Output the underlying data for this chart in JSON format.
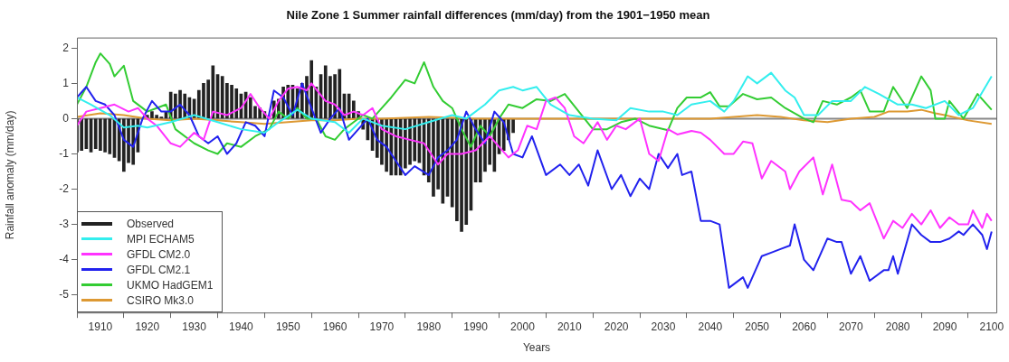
{
  "chart_data": {
    "type": "line",
    "title": "Nile Zone 1 Summer rainfall differences (mm/day) from the 1901−1950 mean",
    "xlabel": "Years",
    "ylabel": "Rainfall anomaly (mm/day)",
    "xlim": [
      1905,
      2101
    ],
    "xticks": [
      1910,
      1920,
      1930,
      1940,
      1950,
      1960,
      1970,
      1980,
      1990,
      2000,
      2010,
      2020,
      2030,
      2040,
      2050,
      2060,
      2070,
      2080,
      2090,
      2100
    ],
    "ylim": [
      -5.5,
      2.3
    ],
    "yticks": [
      -5,
      -4,
      -3,
      -2,
      -1,
      0,
      1,
      2
    ],
    "grid": false,
    "legend": "bottom left",
    "ref_lines": [
      {
        "axis": "y",
        "value": 0,
        "color": "#888888"
      }
    ],
    "series": [
      {
        "name": "Observed",
        "type": "bar",
        "color": "#222222",
        "x": [
          1905,
          1906,
          1907,
          1908,
          1909,
          1910,
          1911,
          1912,
          1913,
          1914,
          1915,
          1916,
          1917,
          1918,
          1919,
          1920,
          1921,
          1922,
          1923,
          1924,
          1925,
          1926,
          1927,
          1928,
          1929,
          1930,
          1931,
          1932,
          1933,
          1934,
          1935,
          1936,
          1937,
          1938,
          1939,
          1940,
          1941,
          1942,
          1943,
          1944,
          1945,
          1946,
          1947,
          1948,
          1949,
          1950,
          1951,
          1952,
          1953,
          1954,
          1955,
          1956,
          1957,
          1958,
          1959,
          1960,
          1961,
          1962,
          1963,
          1964,
          1965,
          1966,
          1967,
          1968,
          1969,
          1970,
          1971,
          1972,
          1973,
          1974,
          1975,
          1976,
          1977,
          1978,
          1979,
          1980,
          1981,
          1982,
          1983,
          1984,
          1985,
          1986,
          1987,
          1988,
          1989,
          1990,
          1991,
          1992,
          1993,
          1994,
          1995,
          1996,
          1997,
          1998
        ],
        "values": [
          -0.95,
          -0.9,
          -0.85,
          -0.95,
          -0.85,
          -0.9,
          -0.95,
          -1.0,
          -1.1,
          -1.2,
          -1.5,
          -1.25,
          -1.3,
          -0.95,
          null,
          0.1,
          0.2,
          0.1,
          0.05,
          0.2,
          0.75,
          0.7,
          0.8,
          0.7,
          0.6,
          0.55,
          0.8,
          1.0,
          1.1,
          1.5,
          1.25,
          1.2,
          1.0,
          0.95,
          0.85,
          0.7,
          0.75,
          0.6,
          0.35,
          0.3,
          0.2,
          null,
          0.5,
          0.55,
          0.9,
          0.95,
          0.95,
          0.85,
          1.0,
          1.2,
          1.65,
          0.9,
          1.25,
          1.5,
          1.2,
          1.25,
          1.4,
          0.7,
          0.7,
          0.5,
          0.2,
          -0.3,
          -0.6,
          -0.9,
          -1.1,
          -1.3,
          -1.5,
          -1.6,
          -1.6,
          -1.6,
          -1.4,
          -1.3,
          -1.2,
          -1.25,
          -1.6,
          -1.8,
          -2.2,
          -2.0,
          -2.4,
          -2.2,
          -2.5,
          -2.9,
          -3.2,
          -3.0,
          -2.6,
          -1.8,
          -1.8,
          -1.5,
          -1.3,
          -1.5,
          -1.0,
          -0.9,
          -0.6,
          -0.4
        ]
      },
      {
        "name": "MPI ECHAM5",
        "color": "#33eeee",
        "x": [
          1905,
          1908,
          1912,
          1915,
          1918,
          1920,
          1925,
          1930,
          1935,
          1940,
          1945,
          1948,
          1952,
          1955,
          1960,
          1963,
          1966,
          1970,
          1975,
          1980,
          1985,
          1988,
          1992,
          1995,
          1998,
          2000,
          2003,
          2006,
          2010,
          2015,
          2020,
          2023,
          2027,
          2030,
          2033,
          2036,
          2040,
          2043,
          2045,
          2048,
          2050,
          2053,
          2056,
          2058,
          2060,
          2063,
          2066,
          2070,
          2073,
          2076,
          2080,
          2083,
          2086,
          2090,
          2093,
          2096,
          2100
        ],
        "values": [
          0.6,
          0.4,
          0.1,
          -0.25,
          -0.2,
          -0.25,
          -0.1,
          0.1,
          -0.1,
          -0.3,
          -0.4,
          -0.1,
          0.25,
          0.0,
          -0.1,
          -0.4,
          0.0,
          -0.2,
          -0.3,
          -0.1,
          0.1,
          0.0,
          0.4,
          0.8,
          0.9,
          0.8,
          0.9,
          0.4,
          0.1,
          0.0,
          -0.05,
          0.3,
          0.2,
          0.2,
          0.1,
          0.4,
          0.5,
          0.2,
          0.5,
          1.2,
          1.0,
          1.3,
          0.8,
          0.6,
          0.1,
          0.1,
          0.5,
          0.5,
          0.9,
          0.7,
          0.4,
          0.4,
          0.3,
          0.5,
          0.1,
          0.3,
          1.2
        ]
      },
      {
        "name": "GFDL CM2.0",
        "color": "#ff33ff",
        "x": [
          1905,
          1907,
          1910,
          1913,
          1916,
          1918,
          1920,
          1922,
          1925,
          1927,
          1930,
          1932,
          1934,
          1937,
          1940,
          1942,
          1944,
          1946,
          1948,
          1950,
          1952,
          1954,
          1955,
          1958,
          1960,
          1962,
          1964,
          1966,
          1968,
          1970,
          1973,
          1976,
          1979,
          1982,
          1984,
          1987,
          1990,
          1993,
          1995,
          1997,
          1999,
          2001,
          2003,
          2005,
          2007,
          2009,
          2011,
          2013,
          2016,
          2018,
          2020,
          2022,
          2025,
          2027,
          2029,
          2031,
          2033,
          2036,
          2038,
          2040,
          2043,
          2045,
          2047,
          2049,
          2051,
          2053,
          2056,
          2057,
          2059,
          2062,
          2064,
          2066,
          2068,
          2070,
          2072,
          2074,
          2077,
          2079,
          2081,
          2083,
          2085,
          2087,
          2089,
          2091,
          2093,
          2095,
          2096,
          2098,
          2099,
          2100
        ],
        "values": [
          -0.2,
          0.2,
          0.3,
          0.4,
          0.2,
          0.3,
          0.0,
          -0.2,
          -0.7,
          -0.8,
          -0.4,
          -0.6,
          0.2,
          0.1,
          0.3,
          0.7,
          0.3,
          0.0,
          0.5,
          0.85,
          0.9,
          0.8,
          1.0,
          0.5,
          0.4,
          0.1,
          0.2,
          0.1,
          0.3,
          -0.3,
          -0.5,
          -0.6,
          -0.7,
          -1.3,
          -1.0,
          -1.0,
          -0.9,
          -0.5,
          -0.8,
          -1.1,
          -0.9,
          -0.2,
          -0.3,
          0.5,
          0.6,
          0.3,
          -0.5,
          -0.7,
          -0.1,
          -0.6,
          -0.2,
          -0.3,
          0.0,
          -1.0,
          -1.2,
          -0.3,
          -0.45,
          -0.35,
          -0.4,
          -0.6,
          -1.0,
          -1.0,
          -0.65,
          -0.7,
          -1.7,
          -1.2,
          -1.5,
          -2.0,
          -1.5,
          -1.1,
          -2.15,
          -1.3,
          -2.3,
          -2.35,
          -2.6,
          -2.4,
          -3.4,
          -2.9,
          -3.1,
          -2.7,
          -3.0,
          -2.6,
          -3.1,
          -2.8,
          -3.0,
          -3.0,
          -2.6,
          -3.1,
          -2.7,
          -2.9
        ]
      },
      {
        "name": "GFDL CM2.1",
        "color": "#2222ee",
        "x": [
          1905,
          1907,
          1909,
          1911,
          1913,
          1915,
          1917,
          1919,
          1921,
          1923,
          1925,
          1927,
          1929,
          1931,
          1933,
          1935,
          1937,
          1939,
          1941,
          1943,
          1945,
          1947,
          1949,
          1951,
          1953,
          1955,
          1957,
          1959,
          1961,
          1963,
          1965,
          1967,
          1969,
          1971,
          1973,
          1975,
          1977,
          1980,
          1982,
          1984,
          1986,
          1988,
          1990,
          1992,
          1994,
          1996,
          1998,
          2000,
          2002,
          2005,
          2008,
          2010,
          2012,
          2014,
          2016,
          2019,
          2021,
          2023,
          2025,
          2027,
          2029,
          2031,
          2033,
          2034,
          2036,
          2038,
          2040,
          2042,
          2044,
          2047,
          2048,
          2051,
          2053,
          2055,
          2057,
          2058,
          2060,
          2062,
          2065,
          2067,
          2068,
          2070,
          2072,
          2074,
          2077,
          2078,
          2079,
          2080,
          2083,
          2085,
          2087,
          2089,
          2091,
          2093,
          2094,
          2096,
          2098,
          2099,
          2100
        ],
        "values": [
          0.6,
          0.9,
          0.5,
          0.4,
          0.1,
          -0.6,
          -0.8,
          0.0,
          0.5,
          0.2,
          0.2,
          0.4,
          0.1,
          -0.5,
          -0.7,
          -0.5,
          -1.0,
          -0.7,
          -0.1,
          -0.2,
          -0.5,
          0.8,
          0.6,
          0.1,
          1.0,
          0.3,
          -0.4,
          0.0,
          0.3,
          -0.6,
          -0.3,
          0.0,
          -0.6,
          -0.8,
          -1.2,
          -1.6,
          -1.35,
          -1.6,
          -1.1,
          -0.9,
          -0.6,
          0.2,
          -0.3,
          -0.7,
          0.2,
          -0.1,
          -1.0,
          -1.1,
          -0.5,
          -1.6,
          -1.3,
          -1.6,
          -1.3,
          -1.9,
          -0.9,
          -2.0,
          -1.6,
          -2.2,
          -1.7,
          -2.0,
          -1.0,
          -1.4,
          -1.0,
          -1.6,
          -1.5,
          -2.9,
          -2.9,
          -3.0,
          -4.8,
          -4.5,
          -4.8,
          -3.9,
          -3.8,
          -3.7,
          -3.6,
          -3.0,
          -4.0,
          -4.3,
          -3.4,
          -3.5,
          -3.5,
          -4.4,
          -3.9,
          -4.6,
          -4.3,
          -4.3,
          -3.9,
          -4.4,
          -3.0,
          -3.3,
          -3.5,
          -3.5,
          -3.4,
          -3.2,
          -3.3,
          -3.0,
          -3.3,
          -3.7,
          -3.2
        ]
      },
      {
        "name": "UKMO HadGEM1",
        "color": "#33cc33",
        "x": [
          1905,
          1907,
          1909,
          1910,
          1912,
          1913,
          1915,
          1917,
          1920,
          1922,
          1924,
          1926,
          1930,
          1933,
          1935,
          1937,
          1940,
          1943,
          1946,
          1948,
          1950,
          1952,
          1954,
          1956,
          1958,
          1960,
          1962,
          1964,
          1966,
          1968,
          1970,
          1972,
          1975,
          1977,
          1979,
          1981,
          1983,
          1985,
          1987,
          1989,
          1991,
          1993,
          1995,
          1997,
          2000,
          2003,
          2006,
          2009,
          2012,
          2015,
          2018,
          2021,
          2024,
          2027,
          2031,
          2033,
          2035,
          2038,
          2040,
          2042,
          2044,
          2047,
          2050,
          2053,
          2056,
          2060,
          2062,
          2064,
          2067,
          2070,
          2072,
          2074,
          2077,
          2079,
          2082,
          2085,
          2087,
          2088,
          2090,
          2091,
          2094,
          2097,
          2100
        ],
        "values": [
          0.4,
          0.9,
          1.6,
          1.85,
          1.55,
          1.2,
          1.5,
          0.5,
          0.2,
          0.3,
          0.4,
          -0.3,
          -0.7,
          -0.9,
          -1.0,
          -0.7,
          -0.8,
          -0.5,
          -0.3,
          0.2,
          0.0,
          0.3,
          0.0,
          0.0,
          -0.5,
          -0.6,
          -0.3,
          -0.1,
          0.1,
          0.0,
          0.3,
          0.6,
          1.1,
          1.0,
          1.6,
          0.9,
          0.5,
          0.3,
          -0.3,
          -0.8,
          -0.2,
          -0.5,
          0.0,
          0.4,
          0.3,
          0.55,
          0.5,
          0.7,
          0.2,
          -0.3,
          -0.3,
          -0.1,
          0.0,
          -0.2,
          -0.33,
          0.3,
          0.6,
          0.6,
          0.75,
          0.35,
          0.35,
          0.7,
          0.55,
          0.6,
          0.3,
          0.0,
          -0.1,
          0.5,
          0.4,
          0.6,
          0.8,
          0.2,
          0.2,
          0.9,
          0.3,
          1.2,
          0.8,
          0.0,
          0.0,
          0.5,
          0.0,
          0.7,
          0.25
        ]
      },
      {
        "name": "CSIRO Mk3.0",
        "color": "#dd9933",
        "x": [
          1905,
          1910,
          1915,
          1920,
          1925,
          1930,
          1935,
          1940,
          1945,
          1950,
          1955,
          1960,
          1965,
          1970,
          1980,
          1990,
          2000,
          2010,
          2020,
          2030,
          2040,
          2050,
          2055,
          2060,
          2065,
          2070,
          2075,
          2078,
          2082,
          2085,
          2088,
          2090,
          2095,
          2100
        ],
        "values": [
          0.05,
          0.15,
          0.1,
          0.0,
          -0.05,
          0.0,
          -0.05,
          -0.1,
          -0.15,
          -0.1,
          -0.05,
          -0.05,
          0.0,
          0.0,
          0.05,
          0.0,
          0.0,
          0.0,
          0.0,
          0.0,
          0.0,
          0.1,
          0.05,
          -0.05,
          -0.1,
          0.0,
          0.05,
          0.2,
          0.2,
          0.25,
          0.15,
          0.1,
          -0.05,
          -0.15
        ]
      }
    ]
  }
}
